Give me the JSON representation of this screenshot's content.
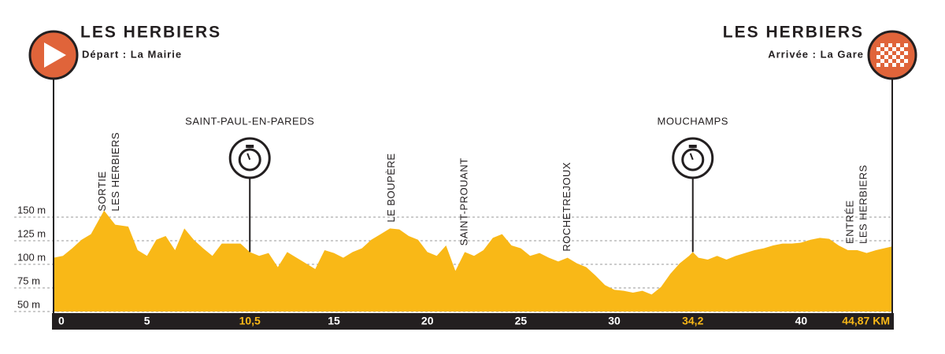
{
  "chart_data": {
    "type": "area",
    "color": "#f9b817",
    "start": {
      "name": "LES HERBIERS",
      "detail": "Départ : La Mairie"
    },
    "finish": {
      "name": "LES HERBIERS",
      "detail": "Arrivée : La Gare"
    },
    "waypoints": [
      {
        "name": "SAINT-PAUL-EN-PAREDS",
        "km": 10.5
      },
      {
        "name": "MOUCHAMPS",
        "km": 34.2
      }
    ],
    "landmarks": [
      {
        "lines": [
          "SORTIE",
          "LES HERBIERS"
        ],
        "km": 3.0
      },
      {
        "lines": [
          "LE BOUPÈRE"
        ],
        "km": 18.1
      },
      {
        "lines": [
          "SAINT-PROUANT"
        ],
        "km": 22.0
      },
      {
        "lines": [
          "ROCHETREJOUX"
        ],
        "km": 27.5
      },
      {
        "lines": [
          "ENTRÉE",
          "LES HERBIERS"
        ],
        "km": 43.0
      }
    ],
    "x": [
      0,
      0.5,
      1,
      1.5,
      2,
      2.7,
      3.3,
      4,
      4.5,
      5,
      5.5,
      6,
      6.5,
      7,
      7.5,
      8,
      8.5,
      9,
      10,
      10.5,
      11,
      11.5,
      12,
      12.5,
      13,
      13.5,
      14,
      14.5,
      15,
      15.5,
      16,
      16.5,
      17,
      17.5,
      18,
      18.5,
      19,
      19.5,
      20,
      20.5,
      21,
      21.5,
      22,
      22.5,
      23,
      23.5,
      24,
      24.5,
      25,
      25.5,
      26,
      26.5,
      27,
      27.5,
      28,
      28.5,
      29,
      29.5,
      30,
      30.5,
      31,
      31.5,
      32,
      32.5,
      33,
      33.5,
      34,
      34.2,
      34.5,
      35,
      35.5,
      36,
      36.5,
      37,
      37.5,
      38,
      38.5,
      39,
      39.5,
      40,
      40.5,
      41,
      41.5,
      42,
      42.5,
      43,
      43.5,
      44,
      44.87
    ],
    "values": [
      107,
      109,
      117,
      126,
      132,
      157,
      142,
      140,
      115,
      109,
      126,
      130,
      115,
      138,
      126,
      117,
      109,
      122,
      122,
      113,
      109,
      112,
      97,
      113,
      107,
      101,
      95,
      115,
      112,
      107,
      113,
      117,
      126,
      132,
      138,
      137,
      130,
      126,
      113,
      109,
      120,
      93,
      113,
      109,
      115,
      128,
      132,
      120,
      117,
      109,
      112,
      107,
      103,
      107,
      101,
      97,
      88,
      78,
      73,
      72,
      70,
      72,
      68,
      76,
      90,
      101,
      109,
      113,
      107,
      105,
      109,
      105,
      109,
      112,
      115,
      117,
      120,
      122,
      122,
      123,
      126,
      128,
      127,
      120,
      115,
      115,
      112,
      115,
      119
    ],
    "xlim": [
      0,
      44.87
    ],
    "xticks": [
      0,
      5,
      {
        "value": 10.5,
        "label": "10,5"
      },
      15,
      20,
      25,
      30,
      {
        "value": 34.2,
        "label": "34,2"
      },
      40,
      {
        "value": 44.87,
        "label": "44,87 KM"
      }
    ],
    "ylim": [
      50,
      175
    ],
    "yticks": [
      {
        "value": 50,
        "label": "50 m"
      },
      {
        "value": 75,
        "label": "75 m"
      },
      {
        "value": 100,
        "label": "100 m"
      },
      {
        "value": 125,
        "label": "125 m"
      },
      {
        "value": 150,
        "label": "150 m"
      }
    ],
    "grid": true
  }
}
